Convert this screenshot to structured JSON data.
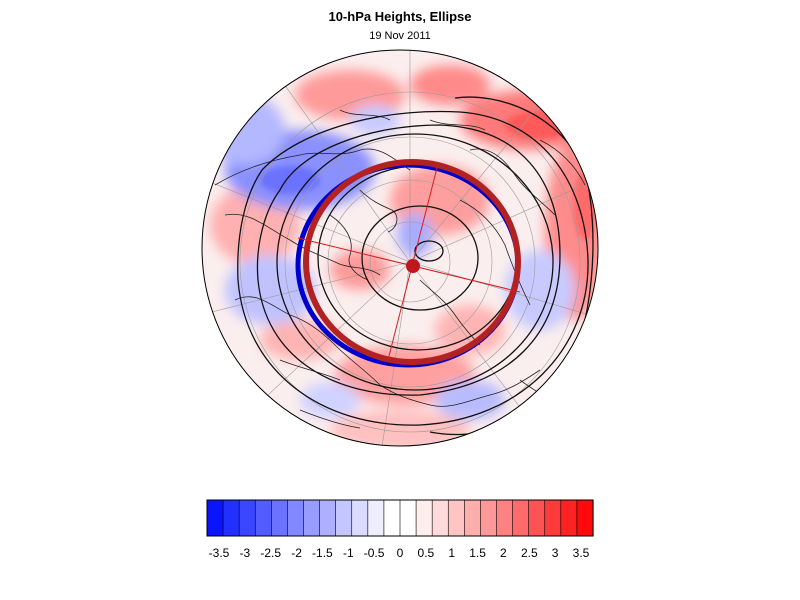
{
  "figure": {
    "title": "10-hPa Heights, Ellipse",
    "subtitle": "19 Nov 2011"
  },
  "map": {
    "projection": "polar stereographic (North Pole)",
    "field": "10-hPa height anomaly (shaded)",
    "overlays": [
      "coastlines",
      "lat/lon grid",
      "geopotential height contours",
      "fitted vortex ellipse",
      "ellipse centroid"
    ],
    "ellipse_colors": {
      "outer": "#b22222",
      "inner": "#0000cc"
    },
    "centroid_color": "#c0171c"
  },
  "colorbar": {
    "orientation": "horizontal",
    "tick_labels": [
      "-3.5",
      "-3",
      "-2.5",
      "-2",
      "-1.5",
      "-1",
      "-0.5",
      "0",
      "0.5",
      "1",
      "1.5",
      "2",
      "2.5",
      "3",
      "3.5"
    ],
    "colors": [
      "#0a14ff",
      "#2230ff",
      "#3a46ff",
      "#525cff",
      "#6a72ff",
      "#8288ff",
      "#989cff",
      "#aeb0ff",
      "#c4c6ff",
      "#dadbff",
      "#eeeeff",
      "#ffffff",
      "#ffffff",
      "#ffeeee",
      "#ffdada",
      "#ffc4c4",
      "#ffaeae",
      "#ff9898",
      "#ff8282",
      "#ff6a6a",
      "#ff5252",
      "#ff3a3a",
      "#ff2222",
      "#ff0a0a"
    ]
  }
}
